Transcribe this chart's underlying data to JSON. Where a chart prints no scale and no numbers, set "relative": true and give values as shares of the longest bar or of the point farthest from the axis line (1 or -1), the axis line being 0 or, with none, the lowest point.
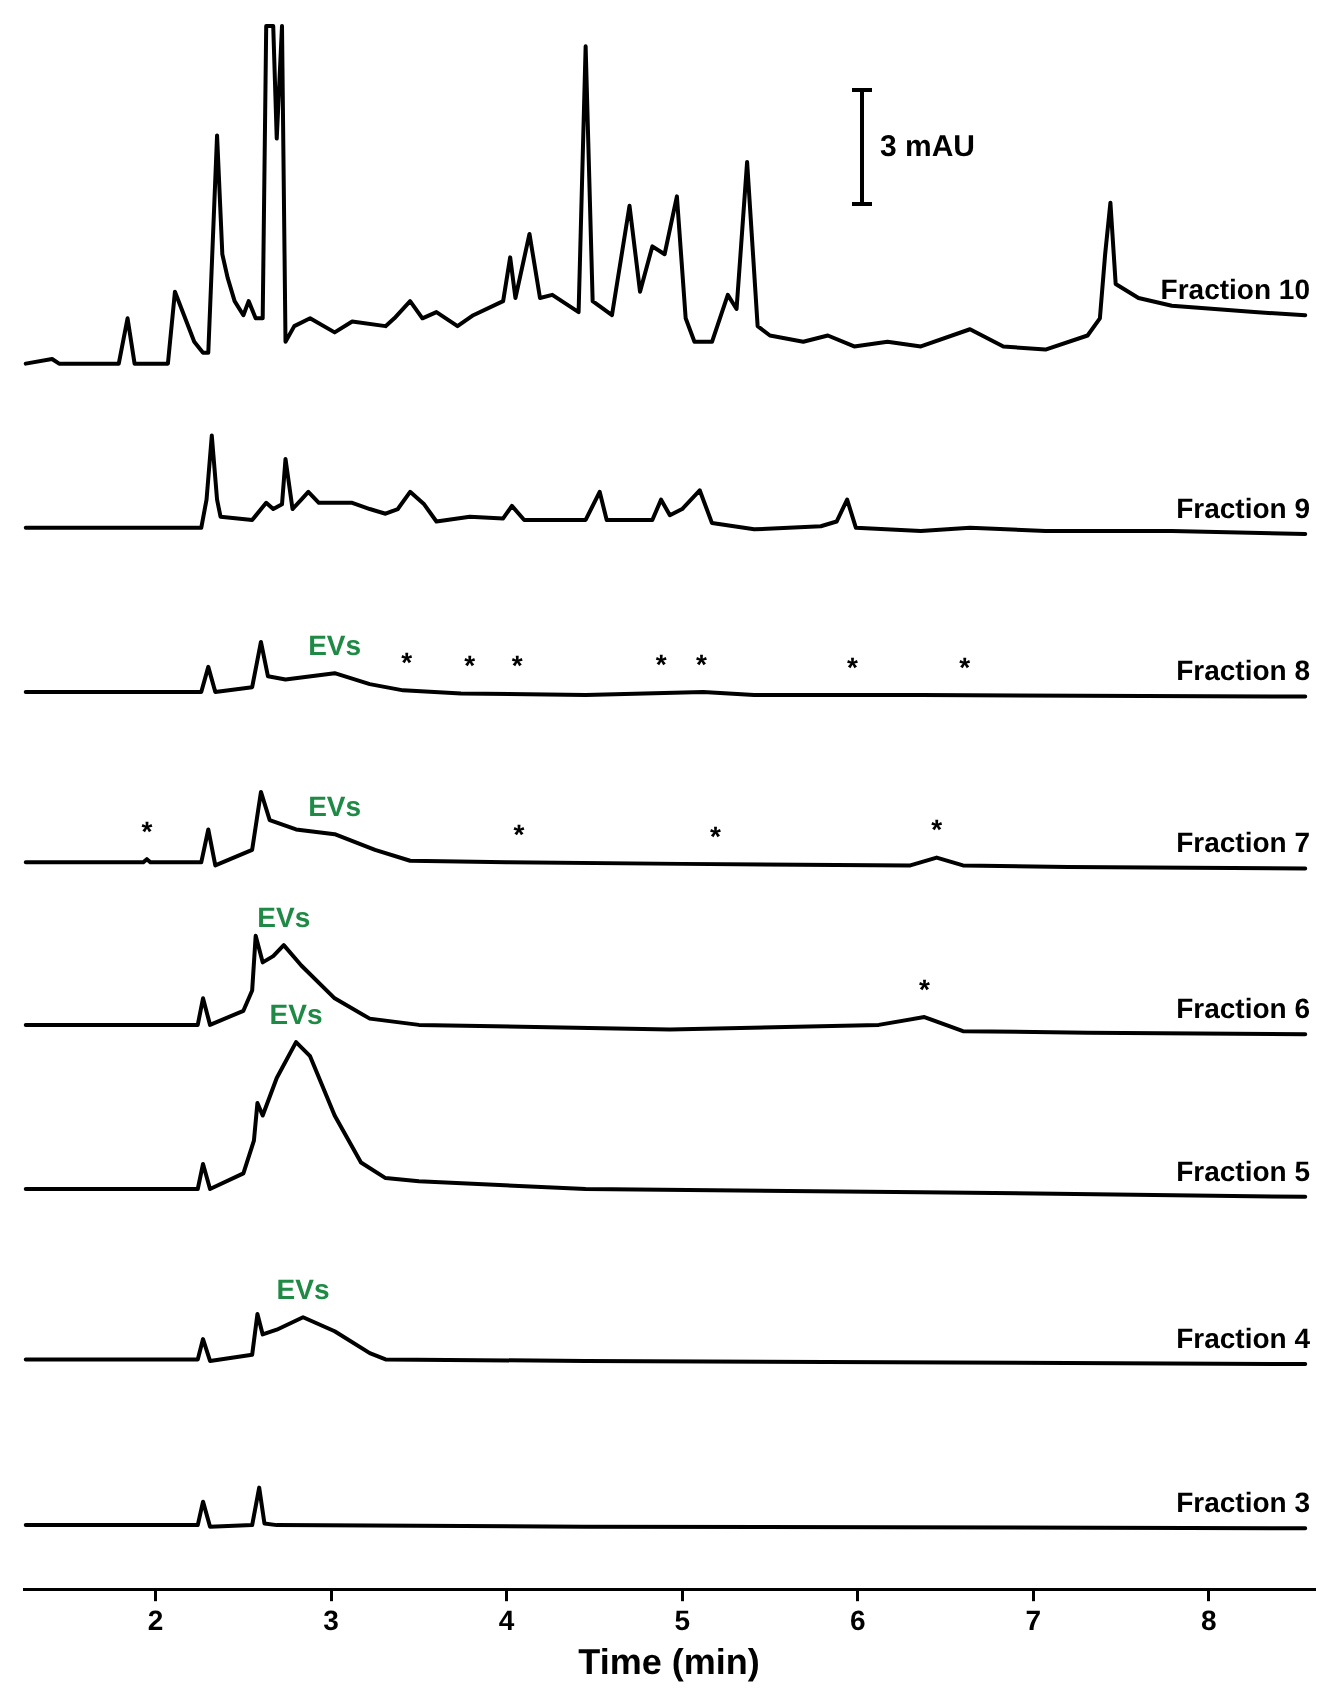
{
  "chart_data": {
    "type": "line",
    "relative": true,
    "xlim": [
      1.25,
      8.6
    ],
    "xticks": [
      2,
      3,
      4,
      5,
      6,
      7,
      8
    ],
    "xlabel": "Time (min)",
    "tick_labels": "x",
    "series": [
      {
        "name": "Fraction 10",
        "color": "#000000",
        "x": [
          1.26,
          1.41,
          1.45,
          1.79,
          1.84,
          1.88,
          2.07,
          2.11,
          2.22,
          2.27,
          2.3,
          2.35,
          2.38,
          2.41,
          2.45,
          2.5,
          2.53,
          2.57,
          2.61,
          2.63,
          2.67,
          2.69,
          2.72,
          2.74,
          2.79,
          2.88,
          3.02,
          3.12,
          3.31,
          3.36,
          3.45,
          3.52,
          3.6,
          3.72,
          3.81,
          3.98,
          4.02,
          4.05,
          4.13,
          4.19,
          4.26,
          4.41,
          4.45,
          4.49,
          4.6,
          4.7,
          4.76,
          4.83,
          4.9,
          4.97,
          5.02,
          5.07,
          5.17,
          5.26,
          5.31,
          5.37,
          5.43,
          5.5,
          5.69,
          5.83,
          5.98,
          6.17,
          6.36,
          6.64,
          6.83,
          7.07,
          7.31,
          7.38,
          7.41,
          7.44,
          7.47,
          7.6,
          7.79,
          8.26,
          8.55
        ],
        "values": [
          0.784,
          0.787,
          0.784,
          0.784,
          0.813,
          0.784,
          0.784,
          0.83,
          0.798,
          0.791,
          0.791,
          0.93,
          0.854,
          0.839,
          0.824,
          0.815,
          0.824,
          0.813,
          0.813,
          1.0,
          1.0,
          0.928,
          1.0,
          0.798,
          0.808,
          0.813,
          0.804,
          0.811,
          0.808,
          0.813,
          0.824,
          0.813,
          0.817,
          0.808,
          0.815,
          0.824,
          0.852,
          0.826,
          0.867,
          0.826,
          0.828,
          0.817,
          0.987,
          0.824,
          0.815,
          0.885,
          0.83,
          0.859,
          0.854,
          0.891,
          0.813,
          0.798,
          0.798,
          0.828,
          0.819,
          0.913,
          0.808,
          0.802,
          0.798,
          0.802,
          0.795,
          0.798,
          0.795,
          0.806,
          0.795,
          0.793,
          0.802,
          0.813,
          0.854,
          0.887,
          0.835,
          0.826,
          0.821,
          0.817,
          0.815
        ]
      },
      {
        "name": "Fraction 9",
        "color": "#000000",
        "x": [
          1.26,
          2.26,
          2.29,
          2.32,
          2.35,
          2.37,
          2.55,
          2.63,
          2.67,
          2.72,
          2.74,
          2.78,
          2.83,
          2.87,
          2.93,
          3.12,
          3.22,
          3.31,
          3.38,
          3.45,
          3.53,
          3.6,
          3.79,
          3.98,
          4.03,
          4.1,
          4.45,
          4.53,
          4.57,
          4.83,
          4.88,
          4.93,
          5.0,
          5.1,
          5.17,
          5.41,
          5.79,
          5.88,
          5.94,
          5.99,
          6.36,
          6.64,
          7.07,
          7.79,
          8.55
        ],
        "values": [
          0.679,
          0.679,
          0.697,
          0.738,
          0.697,
          0.686,
          0.684,
          0.695,
          0.691,
          0.694,
          0.723,
          0.691,
          0.697,
          0.702,
          0.695,
          0.695,
          0.691,
          0.688,
          0.691,
          0.702,
          0.694,
          0.683,
          0.686,
          0.685,
          0.693,
          0.684,
          0.684,
          0.702,
          0.684,
          0.684,
          0.697,
          0.687,
          0.691,
          0.703,
          0.682,
          0.678,
          0.68,
          0.683,
          0.697,
          0.679,
          0.677,
          0.679,
          0.677,
          0.677,
          0.675
        ]
      },
      {
        "name": "Fraction 8",
        "color": "#000000",
        "x": [
          1.26,
          2.26,
          2.3,
          2.34,
          2.55,
          2.6,
          2.64,
          2.74,
          3.02,
          3.22,
          3.41,
          3.74,
          4.45,
          5.12,
          5.41,
          6.36,
          8.55
        ],
        "values": [
          0.574,
          0.574,
          0.59,
          0.574,
          0.577,
          0.606,
          0.584,
          0.582,
          0.586,
          0.579,
          0.575,
          0.573,
          0.572,
          0.574,
          0.572,
          0.572,
          0.571
        ]
      },
      {
        "name": "Fraction 7",
        "color": "#000000",
        "x": [
          1.26,
          1.93,
          1.95,
          1.97,
          2.26,
          2.3,
          2.34,
          2.55,
          2.6,
          2.65,
          2.8,
          3.02,
          3.25,
          3.45,
          4.0,
          5.0,
          6.3,
          6.45,
          6.6,
          7.2,
          8.55
        ],
        "values": [
          0.465,
          0.465,
          0.467,
          0.465,
          0.465,
          0.486,
          0.463,
          0.473,
          0.51,
          0.492,
          0.486,
          0.483,
          0.473,
          0.466,
          0.465,
          0.464,
          0.463,
          0.468,
          0.463,
          0.462,
          0.461
        ]
      },
      {
        "name": "Fraction 6",
        "color": "#000000",
        "x": [
          1.26,
          2.24,
          2.27,
          2.31,
          2.5,
          2.55,
          2.57,
          2.61,
          2.67,
          2.73,
          2.83,
          3.02,
          3.22,
          3.5,
          4.93,
          6.12,
          6.38,
          6.6,
          7.31,
          8.55
        ],
        "values": [
          0.361,
          0.361,
          0.378,
          0.361,
          0.37,
          0.383,
          0.418,
          0.401,
          0.405,
          0.412,
          0.399,
          0.378,
          0.365,
          0.361,
          0.358,
          0.361,
          0.366,
          0.357,
          0.356,
          0.355
        ]
      },
      {
        "name": "Fraction 5",
        "color": "#000000",
        "x": [
          1.26,
          2.24,
          2.27,
          2.31,
          2.5,
          2.56,
          2.58,
          2.61,
          2.69,
          2.8,
          2.88,
          3.02,
          3.17,
          3.31,
          3.5,
          4.45,
          6.36,
          8.55
        ],
        "values": [
          0.256,
          0.256,
          0.272,
          0.256,
          0.266,
          0.287,
          0.311,
          0.303,
          0.327,
          0.35,
          0.341,
          0.303,
          0.273,
          0.263,
          0.261,
          0.256,
          0.254,
          0.251
        ]
      },
      {
        "name": "Fraction 4",
        "color": "#000000",
        "x": [
          1.26,
          2.24,
          2.27,
          2.31,
          2.55,
          2.58,
          2.61,
          2.69,
          2.84,
          3.02,
          3.22,
          3.31,
          4.45,
          8.55
        ],
        "values": [
          0.147,
          0.147,
          0.16,
          0.146,
          0.15,
          0.176,
          0.163,
          0.166,
          0.174,
          0.165,
          0.151,
          0.147,
          0.146,
          0.144
        ]
      },
      {
        "name": "Fraction 3",
        "color": "#000000",
        "x": [
          1.26,
          2.24,
          2.27,
          2.31,
          2.55,
          2.59,
          2.62,
          2.69,
          4.45,
          8.55
        ],
        "values": [
          0.041,
          0.041,
          0.056,
          0.04,
          0.041,
          0.065,
          0.042,
          0.041,
          0.04,
          0.039
        ]
      }
    ],
    "annotations": [
      "3 mAU",
      {
        "text": "EVs",
        "x": 3.02,
        "y": 0.586
      },
      {
        "text": "*",
        "x": 3.43,
        "y": 0.575
      },
      {
        "text": "*",
        "x": 3.79,
        "y": 0.573
      },
      {
        "text": "*",
        "x": 4.06,
        "y": 0.573
      },
      {
        "text": "*",
        "x": 4.88,
        "y": 0.574
      },
      {
        "text": "*",
        "x": 5.11,
        "y": 0.574
      },
      {
        "text": "*",
        "x": 5.97,
        "y": 0.572
      },
      {
        "text": "*",
        "x": 6.61,
        "y": 0.572
      },
      {
        "text": "EVs",
        "x": 3.02,
        "y": 0.483
      },
      {
        "text": "*",
        "x": 1.95,
        "y": 0.467
      },
      {
        "text": "*",
        "x": 4.07,
        "y": 0.465
      },
      {
        "text": "*",
        "x": 5.19,
        "y": 0.464
      },
      {
        "text": "*",
        "x": 6.45,
        "y": 0.468
      },
      {
        "text": "EVs",
        "x": 2.73,
        "y": 0.412
      },
      {
        "text": "*",
        "x": 6.38,
        "y": 0.366
      },
      {
        "text": "EVs",
        "x": 2.8,
        "y": 0.35
      },
      {
        "text": "EVs",
        "x": 2.84,
        "y": 0.174
      }
    ]
  }
}
